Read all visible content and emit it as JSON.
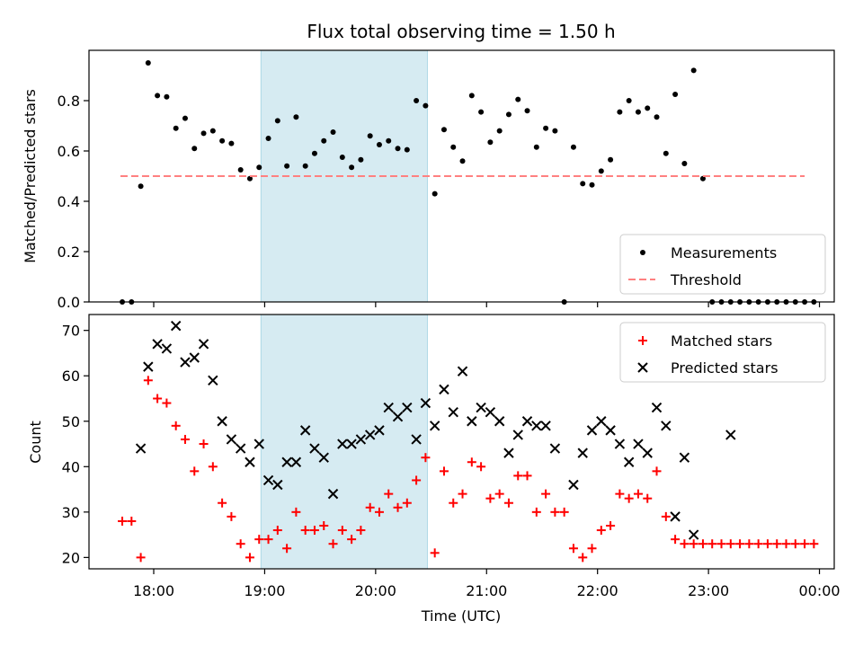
{
  "title": "Flux total observing time = 1.50 h",
  "colors": {
    "measurement": "#000000",
    "threshold": "#ff8080",
    "matched": "#ff0000",
    "predicted": "#000000",
    "span": "#add8e6"
  },
  "chart_data": [
    {
      "type": "scatter",
      "ylabel": "Matched/Predicted stars",
      "xlabel": "",
      "ylim": [
        0,
        1.0
      ],
      "yticks": [
        0.0,
        0.2,
        0.4,
        0.6,
        0.8
      ],
      "shaded_span": [
        "18:58",
        "20:28"
      ],
      "legend": {
        "position": "lower right",
        "entries": [
          "Measurements",
          "Threshold"
        ]
      },
      "series": [
        {
          "name": "Measurements",
          "marker": "dot",
          "points": [
            [
              "17:43",
              0.0
            ],
            [
              "17:48",
              0.0
            ],
            [
              "17:53",
              0.46
            ],
            [
              "17:57",
              0.95
            ],
            [
              "18:02",
              0.82
            ],
            [
              "18:07",
              0.815
            ],
            [
              "18:12",
              0.69
            ],
            [
              "18:17",
              0.73
            ],
            [
              "18:22",
              0.61
            ],
            [
              "18:27",
              0.67
            ],
            [
              "18:32",
              0.68
            ],
            [
              "18:37",
              0.64
            ],
            [
              "18:42",
              0.63
            ],
            [
              "18:47",
              0.525
            ],
            [
              "18:52",
              0.49
            ],
            [
              "18:57",
              0.535
            ],
            [
              "19:02",
              0.65
            ],
            [
              "19:07",
              0.72
            ],
            [
              "19:12",
              0.54
            ],
            [
              "19:17",
              0.735
            ],
            [
              "19:22",
              0.54
            ],
            [
              "19:27",
              0.59
            ],
            [
              "19:32",
              0.64
            ],
            [
              "19:37",
              0.675
            ],
            [
              "19:42",
              0.575
            ],
            [
              "19:47",
              0.535
            ],
            [
              "19:52",
              0.565
            ],
            [
              "19:57",
              0.66
            ],
            [
              "20:02",
              0.625
            ],
            [
              "20:07",
              0.64
            ],
            [
              "20:12",
              0.61
            ],
            [
              "20:17",
              0.605
            ],
            [
              "20:22",
              0.8
            ],
            [
              "20:27",
              0.78
            ],
            [
              "20:32",
              0.43
            ],
            [
              "20:37",
              0.685
            ],
            [
              "20:42",
              0.615
            ],
            [
              "20:47",
              0.56
            ],
            [
              "20:52",
              0.82
            ],
            [
              "20:57",
              0.755
            ],
            [
              "21:02",
              0.635
            ],
            [
              "21:07",
              0.68
            ],
            [
              "21:12",
              0.745
            ],
            [
              "21:17",
              0.805
            ],
            [
              "21:22",
              0.76
            ],
            [
              "21:27",
              0.615
            ],
            [
              "21:32",
              0.69
            ],
            [
              "21:37",
              0.68
            ],
            [
              "21:42",
              0.0
            ],
            [
              "21:47",
              0.615
            ],
            [
              "21:52",
              0.47
            ],
            [
              "21:57",
              0.465
            ],
            [
              "22:02",
              0.52
            ],
            [
              "22:07",
              0.565
            ],
            [
              "22:12",
              0.755
            ],
            [
              "22:17",
              0.8
            ],
            [
              "22:22",
              0.755
            ],
            [
              "22:27",
              0.77
            ],
            [
              "22:32",
              0.735
            ],
            [
              "22:37",
              0.59
            ],
            [
              "22:42",
              0.825
            ],
            [
              "22:47",
              0.55
            ],
            [
              "22:52",
              0.92
            ],
            [
              "23:02",
              0.0
            ],
            [
              "23:07",
              0.0
            ],
            [
              "23:12",
              0.0
            ],
            [
              "23:17",
              0.0
            ],
            [
              "23:22",
              0.0
            ],
            [
              "23:27",
              0.0
            ],
            [
              "23:32",
              0.0
            ],
            [
              "23:37",
              0.0
            ],
            [
              "23:42",
              0.0
            ],
            [
              "23:47",
              0.0
            ],
            [
              "23:52",
              0.0
            ],
            [
              "23:57",
              0.0
            ],
            [
              "22:57",
              0.49
            ]
          ]
        },
        {
          "name": "Threshold",
          "marker": "dashed-line",
          "y": 0.5,
          "x_range": [
            "17:42",
            "23:52"
          ]
        }
      ]
    },
    {
      "type": "scatter",
      "ylabel": "Count",
      "xlabel": "Time (UTC)",
      "ylim": [
        17.5,
        73.5
      ],
      "yticks": [
        20,
        30,
        40,
        50,
        60,
        70
      ],
      "xticks": [
        "18:00",
        "19:00",
        "20:00",
        "21:00",
        "22:00",
        "23:00",
        "00:00"
      ],
      "shaded_span": [
        "18:58",
        "20:28"
      ],
      "legend": {
        "position": "upper right",
        "entries": [
          "Matched stars",
          "Predicted stars"
        ]
      },
      "series": [
        {
          "name": "Matched stars",
          "marker": "plus",
          "points": [
            [
              "17:43",
              28
            ],
            [
              "17:48",
              28
            ],
            [
              "17:53",
              20
            ],
            [
              "17:57",
              59
            ],
            [
              "18:02",
              55
            ],
            [
              "18:07",
              54
            ],
            [
              "18:12",
              49
            ],
            [
              "18:17",
              46
            ],
            [
              "18:22",
              39
            ],
            [
              "18:27",
              45
            ],
            [
              "18:32",
              40
            ],
            [
              "18:37",
              32
            ],
            [
              "18:42",
              29
            ],
            [
              "18:47",
              23
            ],
            [
              "18:52",
              20
            ],
            [
              "18:57",
              24
            ],
            [
              "19:02",
              24
            ],
            [
              "19:07",
              26
            ],
            [
              "19:12",
              22
            ],
            [
              "19:17",
              30
            ],
            [
              "19:22",
              26
            ],
            [
              "19:27",
              26
            ],
            [
              "19:32",
              27
            ],
            [
              "19:37",
              23
            ],
            [
              "19:42",
              26
            ],
            [
              "19:47",
              24
            ],
            [
              "19:52",
              26
            ],
            [
              "19:57",
              31
            ],
            [
              "20:02",
              30
            ],
            [
              "20:07",
              34
            ],
            [
              "20:12",
              31
            ],
            [
              "20:17",
              32
            ],
            [
              "20:22",
              37
            ],
            [
              "20:27",
              42
            ],
            [
              "20:32",
              21
            ],
            [
              "20:37",
              39
            ],
            [
              "20:42",
              32
            ],
            [
              "20:47",
              34
            ],
            [
              "20:52",
              41
            ],
            [
              "20:57",
              40
            ],
            [
              "21:02",
              33
            ],
            [
              "21:07",
              34
            ],
            [
              "21:12",
              32
            ],
            [
              "21:17",
              38
            ],
            [
              "21:22",
              38
            ],
            [
              "21:27",
              30
            ],
            [
              "21:32",
              34
            ],
            [
              "21:37",
              30
            ],
            [
              "21:42",
              30
            ],
            [
              "21:47",
              22
            ],
            [
              "21:52",
              20
            ],
            [
              "21:57",
              22
            ],
            [
              "22:02",
              26
            ],
            [
              "22:07",
              27
            ],
            [
              "22:12",
              34
            ],
            [
              "22:17",
              33
            ],
            [
              "22:22",
              34
            ],
            [
              "22:27",
              33
            ],
            [
              "22:32",
              39
            ],
            [
              "22:37",
              29
            ],
            [
              "22:42",
              24
            ],
            [
              "22:47",
              23
            ],
            [
              "22:52",
              23
            ],
            [
              "22:57",
              23
            ],
            [
              "23:02",
              23
            ],
            [
              "23:07",
              23
            ],
            [
              "23:12",
              23
            ],
            [
              "23:17",
              23
            ],
            [
              "23:22",
              23
            ],
            [
              "23:27",
              23
            ],
            [
              "23:32",
              23
            ],
            [
              "23:37",
              23
            ],
            [
              "23:42",
              23
            ],
            [
              "23:47",
              23
            ],
            [
              "23:52",
              23
            ],
            [
              "23:57",
              23
            ]
          ]
        },
        {
          "name": "Predicted stars",
          "marker": "x",
          "points": [
            [
              "17:53",
              44
            ],
            [
              "17:57",
              62
            ],
            [
              "18:02",
              67
            ],
            [
              "18:07",
              66
            ],
            [
              "18:12",
              71
            ],
            [
              "18:17",
              63
            ],
            [
              "18:22",
              64
            ],
            [
              "18:27",
              67
            ],
            [
              "18:32",
              59
            ],
            [
              "18:37",
              50
            ],
            [
              "18:42",
              46
            ],
            [
              "18:47",
              44
            ],
            [
              "18:52",
              41
            ],
            [
              "18:57",
              45
            ],
            [
              "19:02",
              37
            ],
            [
              "19:07",
              36
            ],
            [
              "19:12",
              41
            ],
            [
              "19:17",
              41
            ],
            [
              "19:22",
              48
            ],
            [
              "19:27",
              44
            ],
            [
              "19:32",
              42
            ],
            [
              "19:37",
              34
            ],
            [
              "19:42",
              45
            ],
            [
              "19:47",
              45
            ],
            [
              "19:52",
              46
            ],
            [
              "19:57",
              47
            ],
            [
              "20:02",
              48
            ],
            [
              "20:07",
              53
            ],
            [
              "20:12",
              51
            ],
            [
              "20:17",
              53
            ],
            [
              "20:22",
              46
            ],
            [
              "20:27",
              54
            ],
            [
              "20:32",
              49
            ],
            [
              "20:37",
              57
            ],
            [
              "20:42",
              52
            ],
            [
              "20:47",
              61
            ],
            [
              "20:52",
              50
            ],
            [
              "20:57",
              53
            ],
            [
              "21:02",
              52
            ],
            [
              "21:07",
              50
            ],
            [
              "21:12",
              43
            ],
            [
              "21:17",
              47
            ],
            [
              "21:22",
              50
            ],
            [
              "21:27",
              49
            ],
            [
              "21:32",
              49
            ],
            [
              "21:37",
              44
            ],
            [
              "21:47",
              36
            ],
            [
              "21:52",
              43
            ],
            [
              "21:57",
              48
            ],
            [
              "22:02",
              50
            ],
            [
              "22:07",
              48
            ],
            [
              "22:12",
              45
            ],
            [
              "22:17",
              41
            ],
            [
              "22:22",
              45
            ],
            [
              "22:27",
              43
            ],
            [
              "22:32",
              53
            ],
            [
              "22:37",
              49
            ],
            [
              "22:42",
              29
            ],
            [
              "22:47",
              42
            ],
            [
              "22:52",
              25
            ],
            [
              "23:12",
              47
            ]
          ]
        }
      ]
    }
  ]
}
